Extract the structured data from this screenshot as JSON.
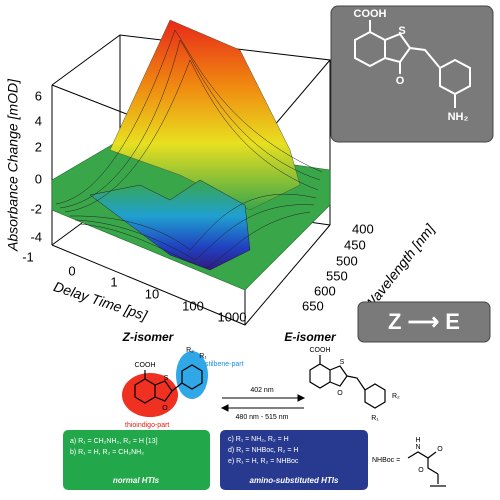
{
  "plot": {
    "y_axis_label": "Absorbance Change [mOD]",
    "y_ticks": [
      "6",
      "4",
      "2",
      "0",
      "-2",
      "-4"
    ],
    "x_axis_label": "Delay Time [ps]",
    "x_ticks": [
      "-1",
      "0",
      "1",
      "10",
      "100",
      "1000"
    ],
    "z_axis_label": "Wavelength [nm]",
    "z_ticks": [
      "400",
      "450",
      "500",
      "550",
      "600",
      "650"
    ]
  },
  "inset": {
    "cooh": "COOH",
    "s": "S",
    "o": "O",
    "amine": "NH₂"
  },
  "reaction_box": {
    "label": "Z ⟶ E"
  },
  "scheme": {
    "z_isomer": "Z-isomer",
    "e_isomer": "E-isomer",
    "z_cooh": "COOH",
    "z_s": "S",
    "z_o": "O",
    "z_r2": "R₂",
    "z_r1": "R₁",
    "stilbene": "stilbene-part",
    "thioindigo": "thioindigo-part",
    "forward": "402 nm",
    "backward": "480 nm - 515 nm",
    "e_cooh": "COOH",
    "e_s": "S",
    "e_o": "O",
    "e_r2": "R₂",
    "e_r1": "R₁"
  },
  "normal_box": {
    "lines": [
      "a) R₁ = CH₂NH₂, R₂ = H [13]",
      "b) R₁ = H, R₂ = CH₂NH₂"
    ],
    "title": "normal HTIs"
  },
  "amino_box": {
    "lines": [
      "c) R₁ = NH₂, R₂ = H",
      "d) R₁ = NHBoc, R₂ = H",
      "e) R₁ = H, R₂ = NHBoc"
    ],
    "title": "amino-substituted HTIs"
  },
  "boc": {
    "label": "NHBoc =",
    "n": "N",
    "h": "H",
    "o1": "O",
    "o2": "O"
  }
}
